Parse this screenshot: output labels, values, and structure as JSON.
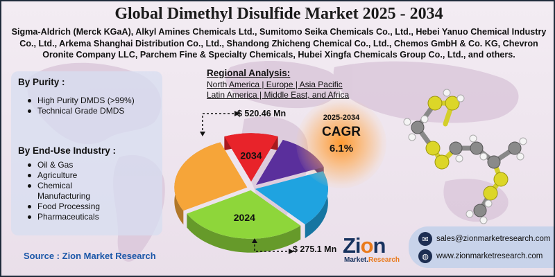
{
  "title": "Global Dimethyl Disulfide Market 2025 - 2034",
  "companies": "Sigma-Aldrich (Merck KGaA), Alkyl Amines Chemicals Ltd., Sumitomo Seika Chemicals Co., Ltd., Hebei Yanuo Chemical Industry Co., Ltd., Arkema Shanghai Distribution Co., Ltd., Shandong Zhicheng Chemical Co., Ltd., Chemos GmbH & Co. KG, Chevron Oronite Company LLC, Parchem Fine & Specialty Chemicals, Hubei Xingfa Chemicals Group Co., Ltd., and others.",
  "segments": {
    "purity_heading": "By Purity :",
    "purity_items": [
      "High Purity DMDS (>99%)",
      "Technical Grade DMDS"
    ],
    "end_use_heading": "By End-Use Industry :",
    "end_use_items": [
      "Oil & Gas",
      "Agriculture",
      "Chemical\nManufacturing",
      "Food Processing",
      "Pharmaceuticals"
    ]
  },
  "regional": {
    "title": "Regional Analysis:",
    "line1": "North America | Europe | Asia Pacific",
    "line2": "Latin America | Middle East, and Africa"
  },
  "cagr": {
    "period": "2025-2034",
    "label": "CAGR",
    "value": "6.1%"
  },
  "source": "Source : Zion Market Research",
  "logo": {
    "main_a": "Zi",
    "main_o": "o",
    "main_b": "n",
    "sub_a": "Market.",
    "sub_b": "Research"
  },
  "contact": {
    "email": "sales@zionmarketresearch.com",
    "website": "www.zionmarketresearch.com",
    "email_icon": "email-icon",
    "web_icon": "globe-icon"
  },
  "chart_data": {
    "type": "pie",
    "title": "",
    "slices": [
      {
        "label": "2034",
        "color": "#e8232a"
      },
      {
        "label": "",
        "color": "#5a2f9c"
      },
      {
        "label": "",
        "color": "#1fa3e0"
      },
      {
        "label": "2024",
        "color": "#8ed63a"
      },
      {
        "label": "",
        "color": "#f6a539"
      }
    ],
    "slice_shares": [
      0.12,
      0.13,
      0.19,
      0.29,
      0.27
    ],
    "annotations": [
      {
        "label": "2034",
        "value_text": "$ 520.46 Mn",
        "value_mn": 520.46
      },
      {
        "label": "2024",
        "value_text": "$ 275.1 Mn",
        "value_mn": 275.1
      }
    ]
  },
  "colors": {
    "title": "#1a1a1a",
    "source": "#1b57a8",
    "logo_primary": "#17325e",
    "logo_accent": "#ea7a1b",
    "contact_bg": "#c8d3ea"
  }
}
